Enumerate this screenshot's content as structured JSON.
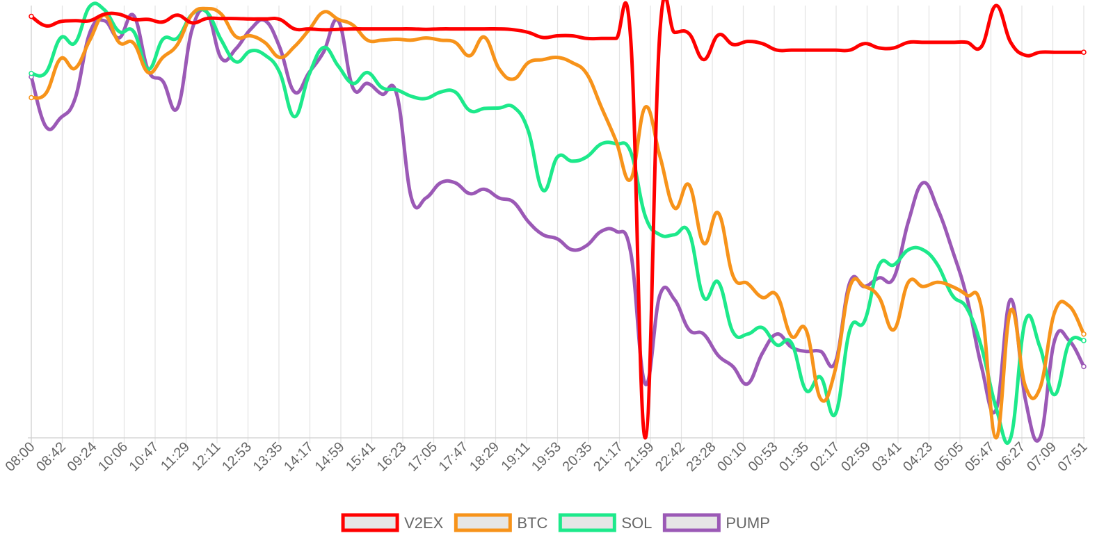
{
  "chart_data": {
    "type": "line",
    "title": "",
    "xlabel": "",
    "ylabel": "",
    "grid": {
      "vertical": true,
      "horizontal": false
    },
    "legend_position": "bottom",
    "y_axis": {
      "visible": false,
      "normalized": true,
      "range": [
        0,
        1
      ]
    },
    "x_labels": [
      "08:00",
      "08:42",
      "09:24",
      "10:06",
      "10:47",
      "11:29",
      "12:11",
      "12:53",
      "13:35",
      "14:17",
      "14:59",
      "15:41",
      "16:23",
      "17:05",
      "17:47",
      "18:29",
      "19:11",
      "19:53",
      "20:35",
      "21:17",
      "21:59",
      "22:42",
      "23:28",
      "00:10",
      "00:53",
      "01:35",
      "02:17",
      "02:59",
      "03:41",
      "04:23",
      "05:05",
      "05:47",
      "06:27",
      "07:09",
      "07:51"
    ],
    "series": [
      {
        "name": "V2EX",
        "color": "#ff0000",
        "values": [
          [
            0,
            0.975
          ],
          [
            1,
            0.953
          ],
          [
            2,
            0.963
          ],
          [
            3,
            0.965
          ],
          [
            4,
            0.965
          ],
          [
            5,
            0.98
          ],
          [
            6,
            0.98
          ],
          [
            7,
            0.968
          ],
          [
            8,
            0.968
          ],
          [
            9,
            0.962
          ],
          [
            10,
            0.978
          ],
          [
            11,
            0.96
          ],
          [
            12,
            0.97
          ],
          [
            13,
            0.97
          ],
          [
            14,
            0.97
          ],
          [
            15,
            0.969
          ],
          [
            16,
            0.969
          ],
          [
            17,
            0.968
          ],
          [
            18,
            0.946
          ],
          [
            19,
            0.946
          ],
          [
            20,
            0.944
          ],
          [
            21,
            0.945
          ],
          [
            22,
            0.946
          ],
          [
            23,
            0.946
          ],
          [
            24,
            0.946
          ],
          [
            25,
            0.946
          ],
          [
            26,
            0.946
          ],
          [
            27,
            0.945
          ],
          [
            28,
            0.946
          ],
          [
            29,
            0.946
          ],
          [
            30,
            0.946
          ],
          [
            31,
            0.946
          ],
          [
            32,
            0.946
          ],
          [
            33,
            0.944
          ],
          [
            34,
            0.938
          ],
          [
            35,
            0.926
          ],
          [
            36,
            0.93
          ],
          [
            37,
            0.93
          ],
          [
            38,
            0.924
          ],
          [
            39,
            0.924
          ],
          [
            40,
            0.924
          ],
          [
            41,
            0.924
          ],
          [
            42,
            0.0
          ],
          [
            43,
            0.938
          ],
          [
            44,
            0.938
          ],
          [
            45,
            0.935
          ],
          [
            46,
            0.875
          ],
          [
            47,
            0.932
          ],
          [
            48,
            0.91
          ],
          [
            49,
            0.917
          ],
          [
            50,
            0.912
          ],
          [
            51,
            0.897
          ],
          [
            52,
            0.897
          ],
          [
            53,
            0.897
          ],
          [
            54,
            0.897
          ],
          [
            55,
            0.897
          ],
          [
            56,
            0.897
          ],
          [
            57,
            0.912
          ],
          [
            58,
            0.902
          ],
          [
            59,
            0.902
          ],
          [
            60,
            0.915
          ],
          [
            61,
            0.915
          ],
          [
            62,
            0.915
          ],
          [
            63,
            0.915
          ],
          [
            64,
            0.915
          ],
          [
            65,
            0.905
          ],
          [
            66,
            1.0
          ],
          [
            67,
            0.915
          ],
          [
            68,
            0.885
          ],
          [
            69,
            0.892
          ],
          [
            70,
            0.892
          ],
          [
            71,
            0.892
          ],
          [
            72,
            0.892
          ]
        ]
      },
      {
        "name": "BTC",
        "color": "#f7931a",
        "values": [
          [
            0,
            0.787
          ],
          [
            1,
            0.797
          ],
          [
            2,
            0.877
          ],
          [
            3,
            0.855
          ],
          [
            4,
            0.92
          ],
          [
            5,
            0.978
          ],
          [
            6,
            0.915
          ],
          [
            7,
            0.913
          ],
          [
            8,
            0.845
          ],
          [
            9,
            0.88
          ],
          [
            10,
            0.91
          ],
          [
            11,
            0.98
          ],
          [
            12,
            0.993
          ],
          [
            13,
            0.98
          ],
          [
            14,
            0.928
          ],
          [
            15,
            0.93
          ],
          [
            16,
            0.914
          ],
          [
            17,
            0.88
          ],
          [
            18,
            0.905
          ],
          [
            19,
            0.944
          ],
          [
            20,
            0.985
          ],
          [
            21,
            0.968
          ],
          [
            22,
            0.955
          ],
          [
            23,
            0.92
          ],
          [
            24,
            0.92
          ],
          [
            25,
            0.922
          ],
          [
            26,
            0.92
          ],
          [
            27,
            0.925
          ],
          [
            28,
            0.92
          ],
          [
            29,
            0.915
          ],
          [
            30,
            0.884
          ],
          [
            31,
            0.927
          ],
          [
            32,
            0.854
          ],
          [
            33,
            0.83
          ],
          [
            34,
            0.868
          ],
          [
            35,
            0.875
          ],
          [
            36,
            0.88
          ],
          [
            37,
            0.868
          ],
          [
            38,
            0.842
          ],
          [
            39,
            0.765
          ],
          [
            40,
            0.687
          ],
          [
            41,
            0.598
          ],
          [
            42,
            0.765
          ],
          [
            43,
            0.652
          ],
          [
            44,
            0.532
          ],
          [
            45,
            0.585
          ],
          [
            46,
            0.45
          ],
          [
            47,
            0.52
          ],
          [
            48,
            0.375
          ],
          [
            49,
            0.357
          ],
          [
            50,
            0.325
          ],
          [
            51,
            0.33
          ],
          [
            52,
            0.235
          ],
          [
            53,
            0.25
          ],
          [
            54,
            0.09
          ],
          [
            55,
            0.158
          ],
          [
            56,
            0.35
          ],
          [
            57,
            0.35
          ],
          [
            58,
            0.325
          ],
          [
            59,
            0.25
          ],
          [
            60,
            0.36
          ],
          [
            61,
            0.35
          ],
          [
            62,
            0.36
          ],
          [
            63,
            0.35
          ],
          [
            64,
            0.33
          ],
          [
            65,
            0.3
          ],
          [
            66,
            0.0
          ],
          [
            67,
            0.295
          ],
          [
            68,
            0.12
          ],
          [
            69,
            0.115
          ],
          [
            70,
            0.29
          ],
          [
            71,
            0.305
          ],
          [
            72,
            0.24
          ]
        ]
      },
      {
        "name": "SOL",
        "color": "#1de98b",
        "values": [
          [
            0,
            0.843
          ],
          [
            1,
            0.845
          ],
          [
            2,
            0.925
          ],
          [
            3,
            0.914
          ],
          [
            4,
            0.998
          ],
          [
            5,
            0.99
          ],
          [
            6,
            0.94
          ],
          [
            7,
            0.94
          ],
          [
            8,
            0.853
          ],
          [
            9,
            0.922
          ],
          [
            10,
            0.925
          ],
          [
            11,
            0.98
          ],
          [
            12,
            0.985
          ],
          [
            13,
            0.92
          ],
          [
            14,
            0.87
          ],
          [
            15,
            0.895
          ],
          [
            16,
            0.885
          ],
          [
            17,
            0.845
          ],
          [
            18,
            0.743
          ],
          [
            19,
            0.84
          ],
          [
            20,
            0.903
          ],
          [
            21,
            0.86
          ],
          [
            22,
            0.82
          ],
          [
            23,
            0.845
          ],
          [
            24,
            0.81
          ],
          [
            25,
            0.805
          ],
          [
            26,
            0.79
          ],
          [
            27,
            0.785
          ],
          [
            28,
            0.8
          ],
          [
            29,
            0.8
          ],
          [
            30,
            0.757
          ],
          [
            31,
            0.762
          ],
          [
            32,
            0.763
          ],
          [
            33,
            0.765
          ],
          [
            34,
            0.71
          ],
          [
            35,
            0.573
          ],
          [
            36,
            0.65
          ],
          [
            37,
            0.64
          ],
          [
            38,
            0.65
          ],
          [
            39,
            0.68
          ],
          [
            40,
            0.68
          ],
          [
            41,
            0.662
          ],
          [
            42,
            0.513
          ],
          [
            43,
            0.47
          ],
          [
            44,
            0.47
          ],
          [
            45,
            0.475
          ],
          [
            46,
            0.325
          ],
          [
            47,
            0.36
          ],
          [
            48,
            0.245
          ],
          [
            49,
            0.24
          ],
          [
            50,
            0.255
          ],
          [
            51,
            0.215
          ],
          [
            52,
            0.22
          ],
          [
            53,
            0.11
          ],
          [
            54,
            0.14
          ],
          [
            55,
            0.055
          ],
          [
            56,
            0.25
          ],
          [
            57,
            0.27
          ],
          [
            58,
            0.4
          ],
          [
            59,
            0.4
          ],
          [
            60,
            0.435
          ],
          [
            61,
            0.435
          ],
          [
            62,
            0.4
          ],
          [
            63,
            0.33
          ],
          [
            64,
            0.3
          ],
          [
            65,
            0.21
          ],
          [
            66,
            0.07
          ],
          [
            67,
            0.0
          ],
          [
            68,
            0.27
          ],
          [
            69,
            0.21
          ],
          [
            70,
            0.1
          ],
          [
            71,
            0.22
          ],
          [
            72,
            0.225
          ]
        ]
      },
      {
        "name": "PUMP",
        "color": "#9b59b6",
        "values": [
          [
            0,
            0.835
          ],
          [
            1,
            0.72
          ],
          [
            2,
            0.74
          ],
          [
            3,
            0.785
          ],
          [
            4,
            0.937
          ],
          [
            5,
            0.965
          ],
          [
            6,
            0.925
          ],
          [
            7,
            0.977
          ],
          [
            8,
            0.85
          ],
          [
            9,
            0.825
          ],
          [
            10,
            0.763
          ],
          [
            11,
            0.945
          ],
          [
            12,
            0.985
          ],
          [
            13,
            0.878
          ],
          [
            14,
            0.9
          ],
          [
            15,
            0.945
          ],
          [
            16,
            0.965
          ],
          [
            17,
            0.903
          ],
          [
            18,
            0.8
          ],
          [
            19,
            0.845
          ],
          [
            20,
            0.893
          ],
          [
            21,
            0.965
          ],
          [
            22,
            0.81
          ],
          [
            23,
            0.82
          ],
          [
            24,
            0.795
          ],
          [
            25,
            0.795
          ],
          [
            26,
            0.555
          ],
          [
            27,
            0.555
          ],
          [
            28,
            0.59
          ],
          [
            29,
            0.59
          ],
          [
            30,
            0.565
          ],
          [
            31,
            0.575
          ],
          [
            32,
            0.555
          ],
          [
            33,
            0.545
          ],
          [
            34,
            0.5
          ],
          [
            35,
            0.47
          ],
          [
            36,
            0.46
          ],
          [
            37,
            0.435
          ],
          [
            38,
            0.445
          ],
          [
            39,
            0.478
          ],
          [
            40,
            0.478
          ],
          [
            41,
            0.43
          ],
          [
            42,
            0.125
          ],
          [
            43,
            0.33
          ],
          [
            44,
            0.32
          ],
          [
            45,
            0.25
          ],
          [
            46,
            0.24
          ],
          [
            47,
            0.19
          ],
          [
            48,
            0.165
          ],
          [
            49,
            0.125
          ],
          [
            50,
            0.195
          ],
          [
            51,
            0.24
          ],
          [
            52,
            0.21
          ],
          [
            53,
            0.2
          ],
          [
            54,
            0.2
          ],
          [
            55,
            0.175
          ],
          [
            56,
            0.36
          ],
          [
            57,
            0.35
          ],
          [
            58,
            0.37
          ],
          [
            59,
            0.37
          ],
          [
            60,
            0.5
          ],
          [
            61,
            0.59
          ],
          [
            62,
            0.53
          ],
          [
            63,
            0.435
          ],
          [
            64,
            0.325
          ],
          [
            65,
            0.165
          ],
          [
            66,
            0.065
          ],
          [
            67,
            0.32
          ],
          [
            68,
            0.09
          ],
          [
            69,
            0.0
          ],
          [
            70,
            0.225
          ],
          [
            71,
            0.225
          ],
          [
            72,
            0.165
          ]
        ]
      }
    ]
  }
}
